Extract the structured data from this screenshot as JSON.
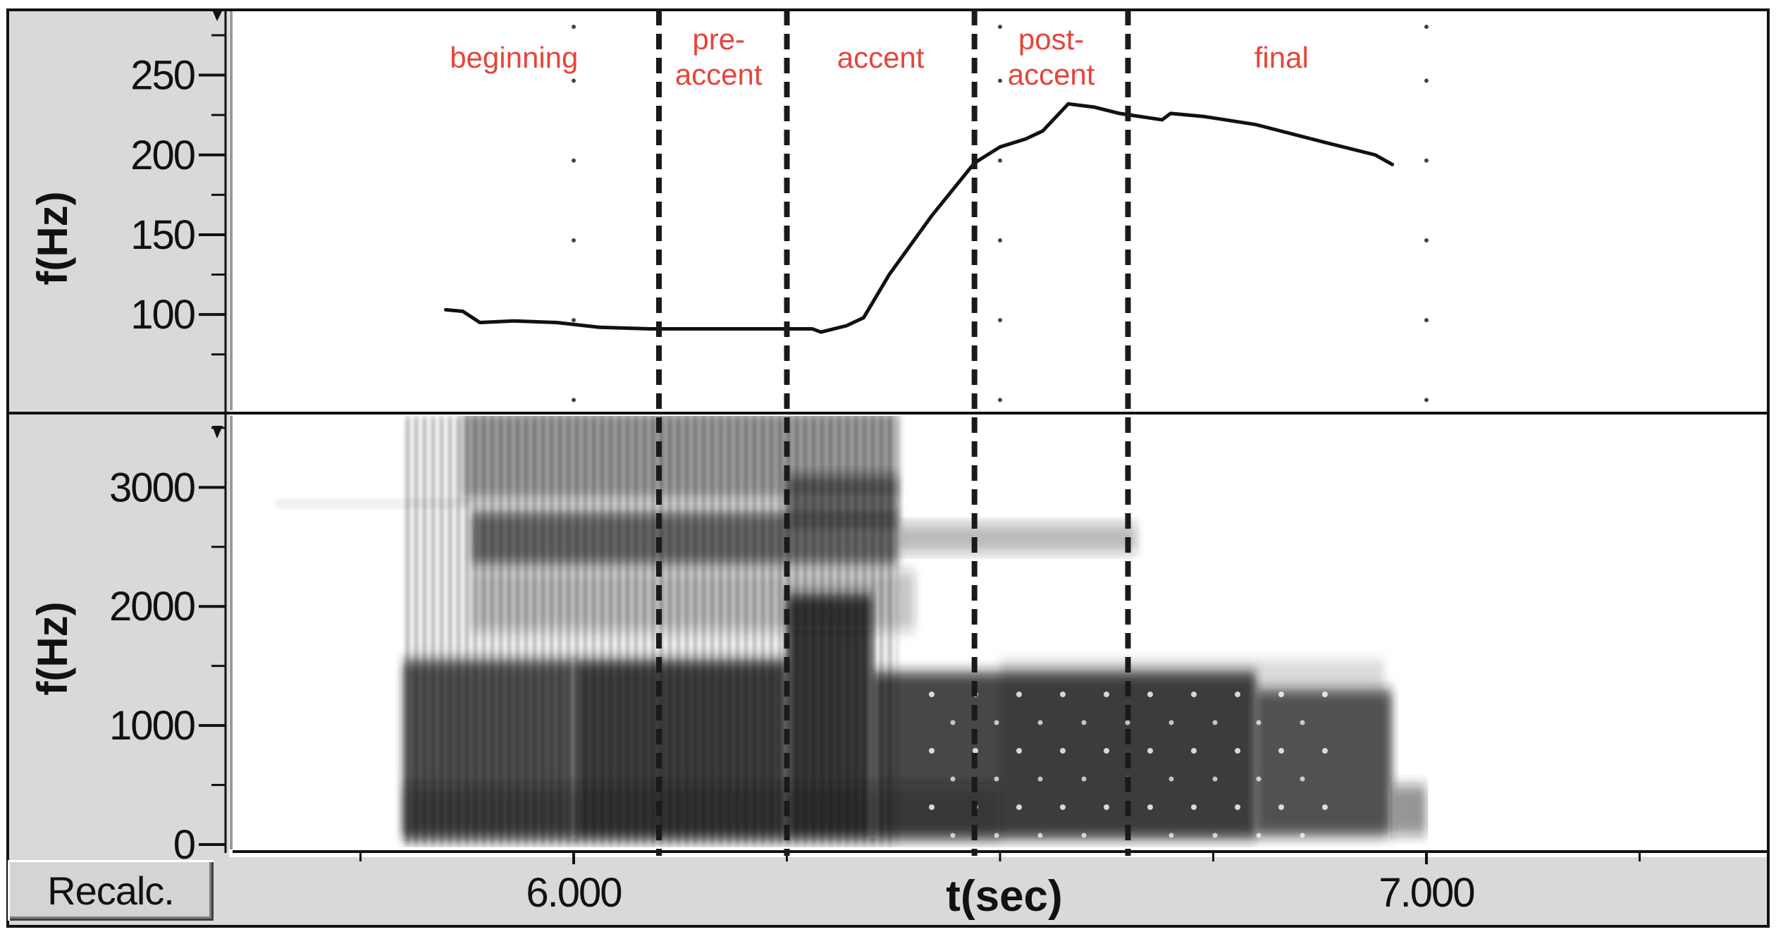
{
  "recalc_label": "Recalc.",
  "chart_data": [
    {
      "type": "line",
      "panel": "pitch",
      "ylabel": "f(Hz)",
      "ylim": [
        40,
        290
      ],
      "yticks": [
        100,
        150,
        200,
        250
      ],
      "xlim": [
        5.6,
        7.4
      ],
      "series": [
        {
          "x": [
            5.85,
            5.87,
            5.89,
            5.93,
            5.98,
            6.03,
            6.09,
            6.15,
            6.22,
            6.28,
            6.29,
            6.32,
            6.34,
            6.37,
            6.42,
            6.47,
            6.5,
            6.53,
            6.55,
            6.58,
            6.61,
            6.64,
            6.69,
            6.7,
            6.74,
            6.8,
            6.88,
            6.94,
            6.96
          ],
          "values": [
            103,
            102,
            95,
            96,
            95,
            92,
            91,
            91,
            91,
            91,
            89,
            93,
            98,
            125,
            162,
            195,
            205,
            210,
            215,
            232,
            230,
            226,
            222,
            226,
            224,
            219,
            208,
            200,
            194
          ]
        }
      ],
      "color": "#111111"
    },
    {
      "type": "heatmap",
      "panel": "spectrogram",
      "ylabel": "f(Hz)",
      "xlabel": "t(sec)",
      "ylim": [
        0,
        3600
      ],
      "yticks": [
        0,
        1000,
        2000,
        3000
      ],
      "xlim": [
        5.6,
        7.4
      ],
      "xtick_labels": [
        "6.000",
        "7.000"
      ],
      "xticks": [
        6.0,
        7.0
      ],
      "x_minor_ticks": [
        5.75,
        6.25,
        6.5,
        6.75,
        7.25
      ],
      "voiced_interval": [
        5.8,
        7.0
      ]
    }
  ],
  "segments": {
    "boundaries": [
      6.1,
      6.25,
      6.47,
      6.65
    ],
    "labels": [
      {
        "text": "beginning",
        "x": 5.93
      },
      {
        "text": "pre-\naccent",
        "x": 6.17
      },
      {
        "text": "accent",
        "x": 6.36
      },
      {
        "text": "post-\naccent",
        "x": 6.56
      },
      {
        "text": "final",
        "x": 6.83
      }
    ],
    "label_color": "#e8443a"
  }
}
